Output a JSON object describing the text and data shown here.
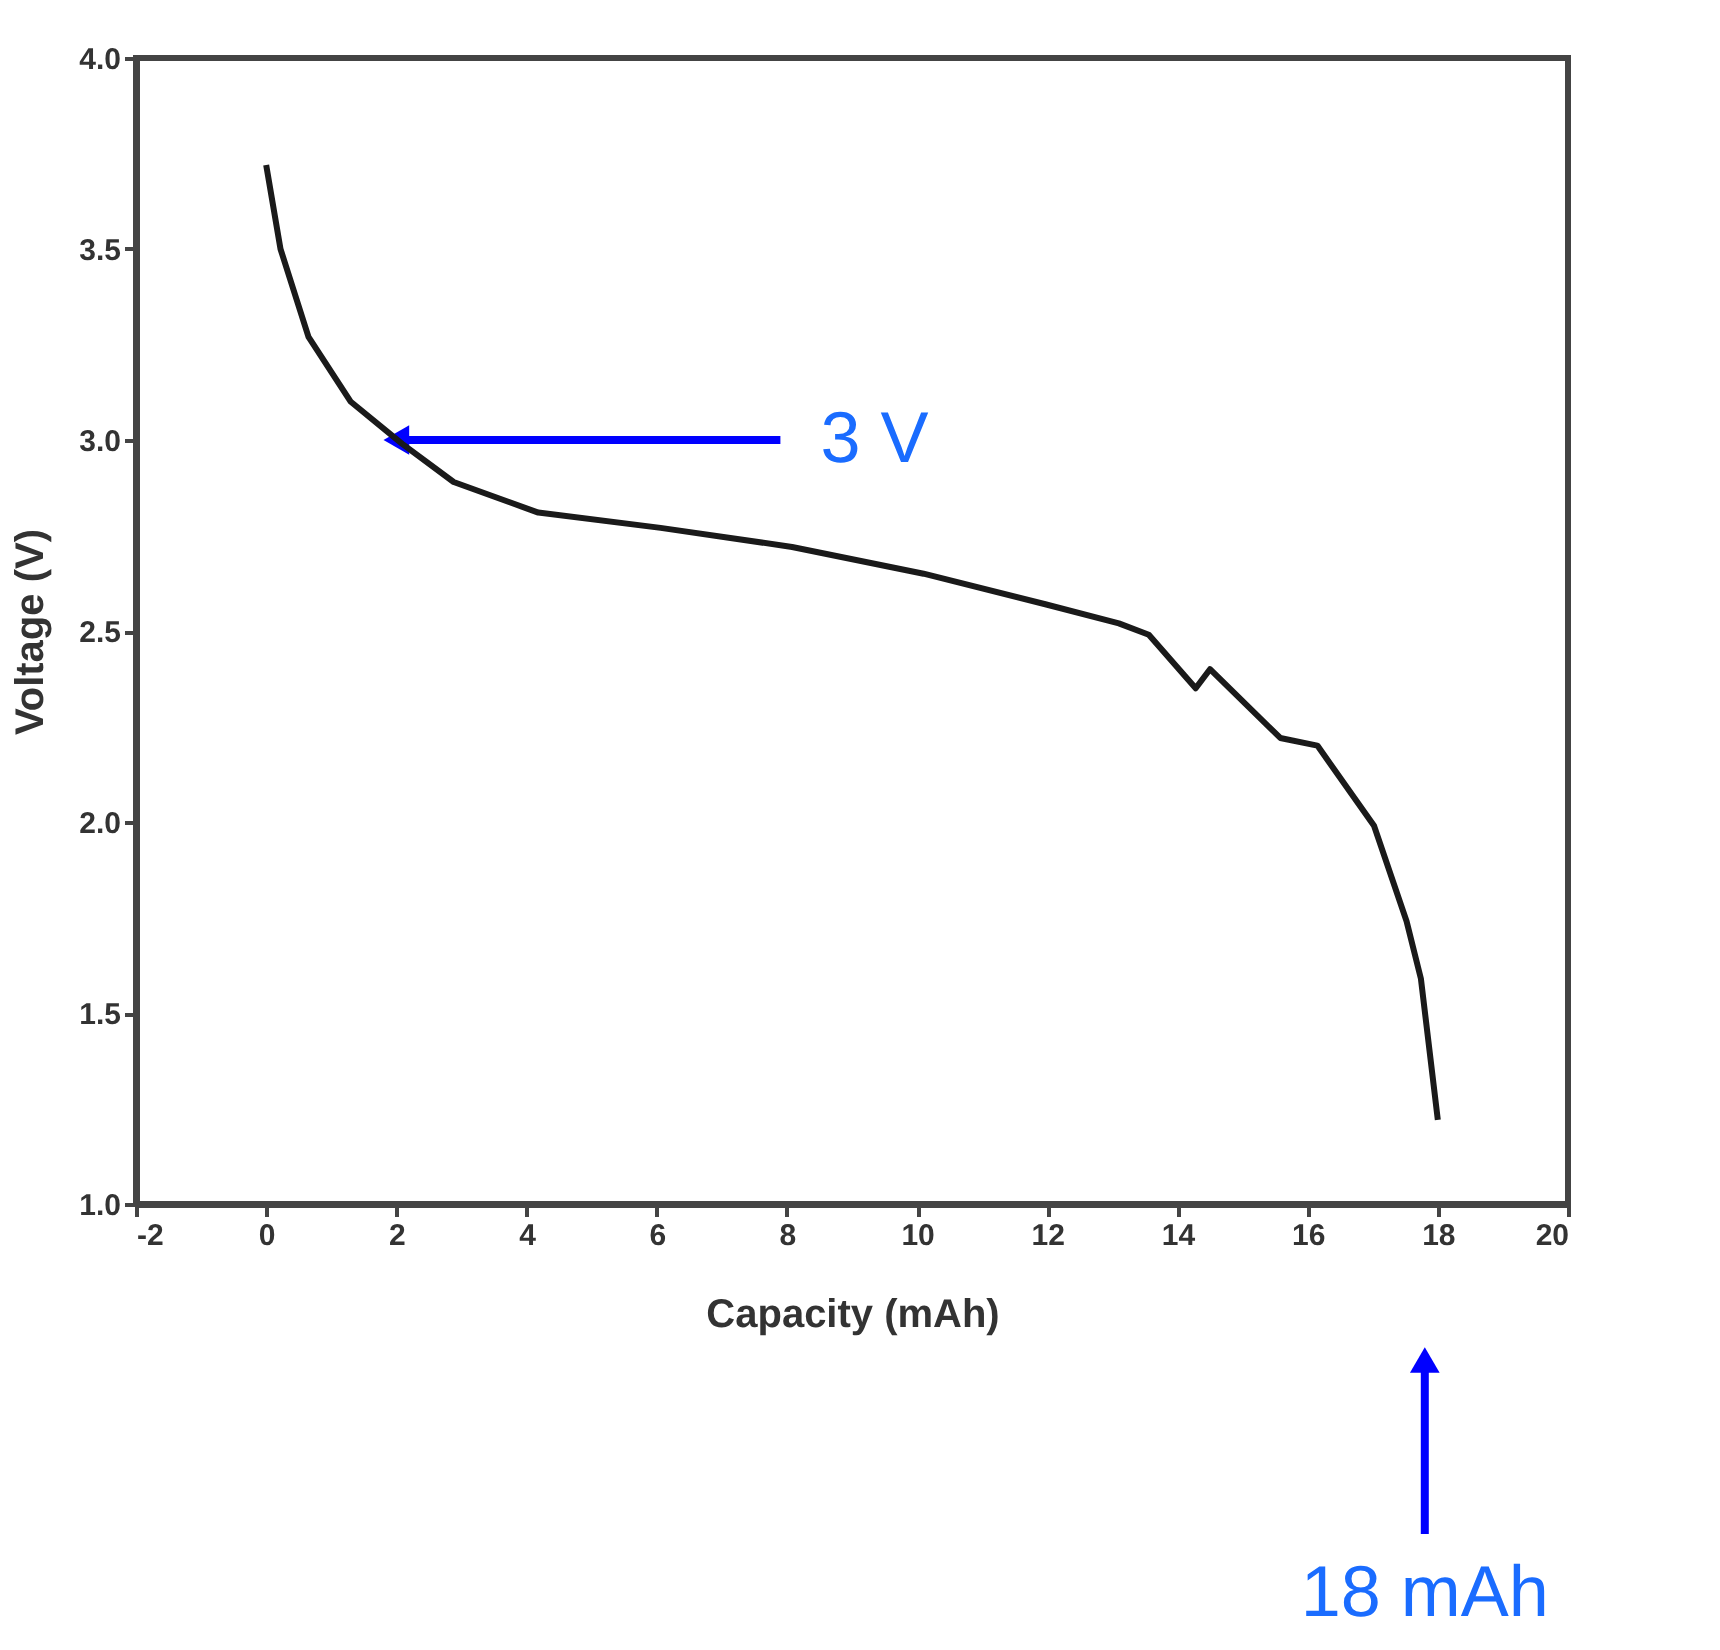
{
  "chart_data": {
    "type": "line",
    "xlabel": "Capacity (mAh)",
    "ylabel": "Voltage (V)",
    "x": [
      0,
      0.22,
      0.65,
      1.3,
      2.09,
      2.88,
      4.18,
      6.06,
      8.08,
      10.1,
      11.97,
      13.1,
      13.56,
      14.28,
      14.5,
      15.58,
      16.15,
      17.02,
      17.52,
      17.74,
      18.0
    ],
    "series": [
      {
        "color": "#1a1a1a",
        "values": [
          3.72,
          3.5,
          3.27,
          3.1,
          2.99,
          2.89,
          2.81,
          2.77,
          2.72,
          2.65,
          2.57,
          2.52,
          2.49,
          2.35,
          2.4,
          2.22,
          2.2,
          1.99,
          1.74,
          1.59,
          1.22
        ]
      }
    ],
    "xlim": [
      -2,
      20
    ],
    "xticks": [
      -2,
      0,
      2,
      4,
      6,
      8,
      10,
      12,
      14,
      16,
      18,
      20
    ],
    "ylim": [
      1.0,
      4.0
    ],
    "yticks": [
      {
        "value": 1.0,
        "label": "1.0"
      },
      {
        "value": 1.5,
        "label": "1.5"
      },
      {
        "value": 2.0,
        "label": "2.0"
      },
      {
        "value": 2.5,
        "label": "2.5"
      },
      {
        "value": 3.0,
        "label": "3.0"
      },
      {
        "value": 3.5,
        "label": "3.5"
      },
      {
        "value": 4.0,
        "label": "4.0"
      }
    ],
    "annotations": [
      {
        "text": "3 V",
        "x": 2,
        "y": 3.0
      },
      "18 mAh"
    ],
    "marker": "none",
    "line_style": "solid"
  }
}
